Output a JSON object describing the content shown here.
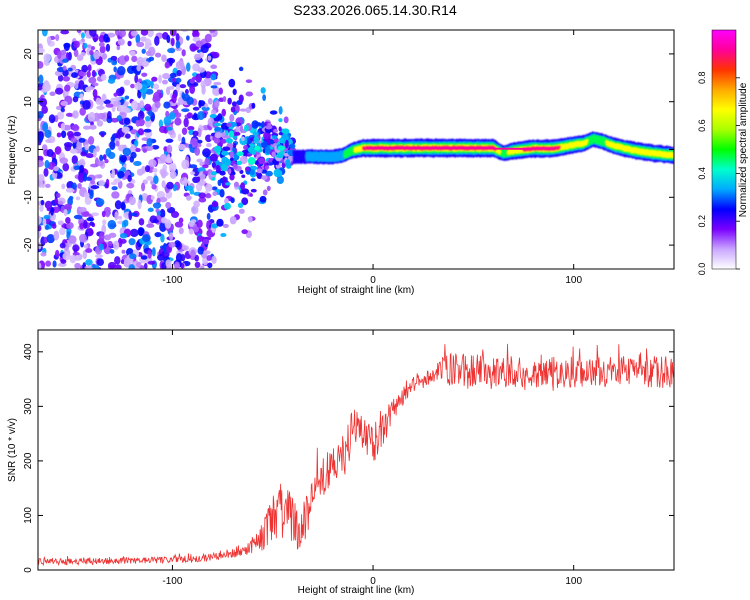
{
  "title": "S233.2026.065.14.30.R14",
  "colors": {
    "snr_line": "#ee3333",
    "frame": "#000000"
  },
  "chart_data": [
    {
      "id": "spectrogram",
      "type": "heatmap",
      "xlabel": "Height of straight line (km)",
      "ylabel": "Frequency (Hz)",
      "xlim": [
        -167,
        150
      ],
      "ylim": [
        -25,
        25
      ],
      "xticks": [
        -100,
        0,
        100
      ],
      "xtick_labels": [
        "-100",
        "0",
        "100"
      ],
      "yticks": [
        -20,
        -10,
        0,
        10,
        20
      ],
      "ytick_labels": [
        "-20",
        "-10",
        "0",
        "10",
        "20"
      ],
      "colorbar": {
        "label": "Normalized spectral amplitude",
        "range": [
          0,
          1
        ],
        "ticks": [
          0.0,
          0.2,
          0.4,
          0.6,
          0.8
        ],
        "tick_labels": [
          "0.0",
          "0.2",
          "0.4",
          "0.6",
          "0.8"
        ],
        "colormap": [
          "#ffffff",
          "#c9a6ff",
          "#7a00ff",
          "#0000ff",
          "#00aaff",
          "#00ffcc",
          "#00ff00",
          "#aaff00",
          "#ffff00",
          "#ffaa00",
          "#ff3300",
          "#ff0099",
          "#ff00ff"
        ]
      },
      "description_regions": {
        "noise_region_km": [
          -167,
          -80
        ],
        "transition_region_km": [
          -80,
          -40
        ],
        "carrier_region_km": [
          -40,
          150
        ]
      },
      "carrier_track": {
        "x": [
          -40,
          -30,
          -20,
          -15,
          -10,
          -5,
          0,
          10,
          20,
          40,
          60,
          65,
          70,
          80,
          90,
          100,
          105,
          110,
          115,
          120,
          130,
          140,
          150
        ],
        "freq": [
          -1.5,
          -1.5,
          -1.6,
          -1.2,
          -0.2,
          0.3,
          0.3,
          0.3,
          0.3,
          0.3,
          0.3,
          -0.8,
          -0.3,
          0.2,
          0.2,
          1.0,
          1.3,
          2.2,
          1.6,
          0.8,
          -0.2,
          -0.8,
          -1.2
        ],
        "peak_amplitude": [
          0.25,
          0.3,
          0.35,
          0.4,
          0.6,
          0.85,
          0.95,
          0.98,
          0.98,
          0.98,
          0.95,
          0.5,
          0.8,
          0.9,
          0.9,
          0.75,
          0.7,
          0.5,
          0.6,
          0.7,
          0.8,
          0.8,
          0.75
        ]
      }
    },
    {
      "id": "snr",
      "type": "line",
      "xlabel": "Height of straight line (km)",
      "ylabel": "SNR (10 * v/v)",
      "xlim": [
        -167,
        150
      ],
      "ylim": [
        0,
        440
      ],
      "xticks": [
        -100,
        0,
        100
      ],
      "xtick_labels": [
        "-100",
        "0",
        "100"
      ],
      "yticks": [
        0,
        100,
        200,
        300,
        400
      ],
      "ytick_labels": [
        "0",
        "100",
        "200",
        "300",
        "400"
      ],
      "series": [
        {
          "name": "SNR",
          "x": [
            -167,
            -140,
            -110,
            -90,
            -75,
            -65,
            -60,
            -55,
            -50,
            -45,
            -40,
            -35,
            -30,
            -25,
            -20,
            -15,
            -10,
            -5,
            0,
            5,
            10,
            15,
            20,
            25,
            30,
            35,
            40,
            50,
            60,
            80,
            100,
            120,
            140,
            150
          ],
          "y": [
            15,
            16,
            18,
            20,
            25,
            35,
            45,
            60,
            95,
            110,
            85,
            80,
            140,
            175,
            185,
            200,
            260,
            250,
            230,
            255,
            295,
            320,
            340,
            345,
            360,
            365,
            368,
            365,
            365,
            362,
            362,
            364,
            362,
            365
          ],
          "noise_amplitude": [
            6,
            6,
            6,
            7,
            8,
            10,
            14,
            25,
            45,
            55,
            55,
            40,
            40,
            40,
            35,
            40,
            40,
            35,
            35,
            30,
            25,
            20,
            15,
            15,
            14,
            30,
            30,
            30,
            30,
            28,
            30,
            28,
            30,
            30
          ]
        }
      ]
    }
  ]
}
